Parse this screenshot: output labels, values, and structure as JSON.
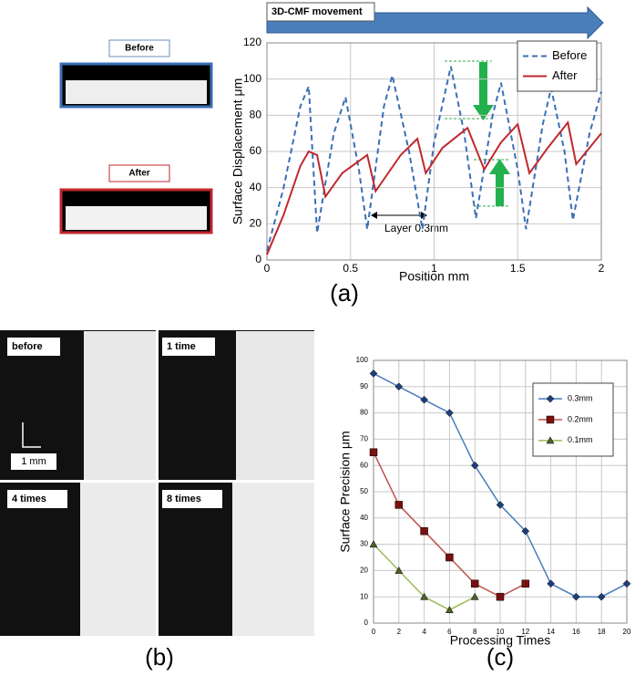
{
  "chart_data": [
    {
      "type": "line",
      "xlabel": "Position  mm",
      "ylabel": "Surface Displacement  μm",
      "xlim": [
        0,
        2
      ],
      "xticks": [
        0,
        0.5,
        1,
        1.5,
        2
      ],
      "ylim": [
        0,
        120
      ],
      "yticks": [
        0,
        20,
        40,
        60,
        80,
        100,
        120
      ],
      "grid": true,
      "legend": "upper right",
      "annotations": {
        "banner": "3D-CMF movement",
        "layer": "Layer 0.3mm"
      },
      "series": [
        {
          "name": "Before",
          "color": "#3a6fb5",
          "line_style": "dashed",
          "x": [
            0,
            0.1,
            0.2,
            0.25,
            0.3,
            0.4,
            0.47,
            0.55,
            0.6,
            0.7,
            0.75,
            0.85,
            0.93,
            1.0,
            1.1,
            1.18,
            1.25,
            1.35,
            1.4,
            1.5,
            1.55,
            1.65,
            1.7,
            1.78,
            1.83,
            1.93,
            2.0
          ],
          "values": [
            5,
            40,
            85,
            96,
            15,
            70,
            90,
            50,
            17,
            85,
            102,
            60,
            17,
            65,
            107,
            70,
            23,
            80,
            98,
            50,
            17,
            75,
            95,
            60,
            22,
            70,
            93
          ]
        },
        {
          "name": "After",
          "color": "#c0272d",
          "line_style": "solid",
          "x": [
            0,
            0.1,
            0.2,
            0.25,
            0.3,
            0.35,
            0.45,
            0.6,
            0.65,
            0.8,
            0.9,
            0.95,
            1.05,
            1.2,
            1.3,
            1.4,
            1.5,
            1.57,
            1.68,
            1.8,
            1.85,
            2.0
          ],
          "values": [
            3,
            25,
            52,
            60,
            58,
            35,
            48,
            58,
            38,
            58,
            67,
            48,
            62,
            73,
            50,
            65,
            75,
            48,
            62,
            76,
            53,
            70
          ]
        }
      ]
    },
    {
      "type": "line",
      "xlabel": "Processing Times",
      "ylabel": "Surface Precision μm",
      "xlim": [
        0,
        20
      ],
      "xticks": [
        0,
        2,
        4,
        6,
        8,
        10,
        12,
        14,
        16,
        18,
        20
      ],
      "ylim": [
        0,
        100
      ],
      "yticks": [
        0,
        10,
        20,
        30,
        40,
        50,
        60,
        70,
        80,
        90,
        100
      ],
      "grid": true,
      "legend": "upper right",
      "series": [
        {
          "name": "0.3mm",
          "color": "#4a7ebb",
          "marker": "diamond",
          "marker_color": "#1f3f7a",
          "x": [
            0,
            2,
            4,
            6,
            8,
            10,
            12,
            14,
            16,
            18,
            20
          ],
          "values": [
            95,
            90,
            85,
            80,
            60,
            45,
            35,
            15,
            10,
            10,
            15
          ]
        },
        {
          "name": "0.2mm",
          "color": "#c0504d",
          "marker": "square",
          "marker_color": "#7a1010",
          "x": [
            0,
            2,
            4,
            6,
            8,
            10,
            12
          ],
          "values": [
            65,
            45,
            35,
            25,
            15,
            10,
            15
          ]
        },
        {
          "name": "0.1mm",
          "color": "#9bbb59",
          "marker": "triangle",
          "marker_color": "#4f6228",
          "x": [
            0,
            2,
            4,
            6,
            8
          ],
          "values": [
            30,
            20,
            10,
            5,
            10
          ]
        }
      ]
    }
  ],
  "images": {
    "before": "Before",
    "after": "After",
    "photos": [
      "before",
      "1 time",
      "4 times",
      "8 times"
    ],
    "scale": "1 mm"
  },
  "panel_labels": [
    "(a)",
    "(b)",
    "(c)"
  ]
}
